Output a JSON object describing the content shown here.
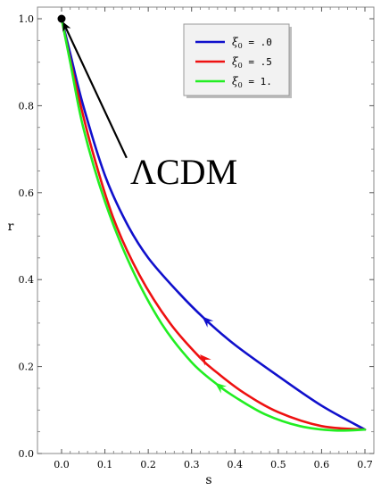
{
  "chart_data": {
    "type": "line",
    "xlabel": "s",
    "ylabel": "r",
    "xlim": [
      -0.05,
      0.72
    ],
    "ylim": [
      0.0,
      1.02
    ],
    "x_ticks": [
      "0.0",
      "0.1",
      "0.2",
      "0.3",
      "0.4",
      "0.5",
      "0.6",
      "0.7"
    ],
    "y_ticks": [
      "0.0",
      "0.2",
      "0.4",
      "0.6",
      "0.8",
      "1.0"
    ],
    "grid": false,
    "legend_position": "top-right",
    "series": [
      {
        "name_prefix": "ξ",
        "name_sub": "0",
        "name_suffix": " = .0",
        "color": "#1010cc",
        "x": [
          0.7,
          0.6,
          0.5,
          0.4,
          0.33,
          0.27,
          0.2,
          0.15,
          0.1,
          0.05,
          0.02,
          0.0
        ],
        "y": [
          0.055,
          0.11,
          0.178,
          0.25,
          0.31,
          0.37,
          0.45,
          0.53,
          0.64,
          0.8,
          0.92,
          1.0
        ],
        "arrow": {
          "x": 0.33,
          "y": 0.31
        }
      },
      {
        "name_prefix": "ξ",
        "name_sub": "0",
        "name_suffix": " = .5",
        "color": "#ee1111",
        "x": [
          0.7,
          0.6,
          0.5,
          0.42,
          0.36,
          0.32,
          0.25,
          0.18,
          0.12,
          0.07,
          0.03,
          0.0
        ],
        "y": [
          0.055,
          0.063,
          0.095,
          0.14,
          0.185,
          0.22,
          0.3,
          0.41,
          0.54,
          0.7,
          0.86,
          1.0
        ],
        "arrow": {
          "x": 0.325,
          "y": 0.222
        }
      },
      {
        "name_prefix": "ξ",
        "name_sub": "0",
        "name_suffix": " = 1.",
        "color": "#22ee22",
        "x": [
          0.7,
          0.63,
          0.55,
          0.47,
          0.4,
          0.36,
          0.3,
          0.23,
          0.16,
          0.1,
          0.05,
          0.02,
          0.0
        ],
        "y": [
          0.055,
          0.053,
          0.063,
          0.09,
          0.13,
          0.158,
          0.21,
          0.3,
          0.43,
          0.58,
          0.75,
          0.9,
          1.0
        ],
        "arrow": {
          "x": 0.36,
          "y": 0.158
        }
      }
    ],
    "annotation": {
      "text": "ΛCDM",
      "point": {
        "x": 0.0,
        "y": 1.0
      },
      "arrow_tail": {
        "x": 0.15,
        "y": 0.68
      }
    }
  }
}
